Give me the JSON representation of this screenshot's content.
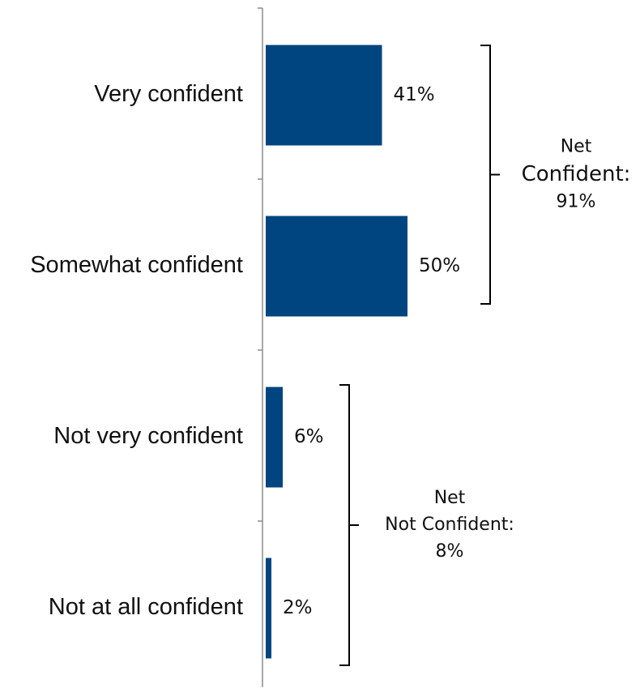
{
  "chart_data": {
    "type": "bar",
    "orientation": "horizontal",
    "categories": [
      "Very confident",
      "Somewhat confident",
      "Not very confident",
      "Not at all confident"
    ],
    "values": [
      41,
      50,
      6,
      2
    ],
    "value_labels": [
      "41%",
      "50%",
      "6%",
      "2%"
    ],
    "title": "",
    "xlabel": "",
    "ylabel": "",
    "grid": false,
    "bar_color": "#004580",
    "groups": [
      {
        "line1": "Net",
        "line2": "Confident:",
        "line3": "91%",
        "value": 91,
        "from_category": 0,
        "to_category": 1
      },
      {
        "line1": "Net",
        "line2": "Not Confident:",
        "line3": "8%",
        "value": 8,
        "from_category": 2,
        "to_category": 3
      }
    ]
  }
}
